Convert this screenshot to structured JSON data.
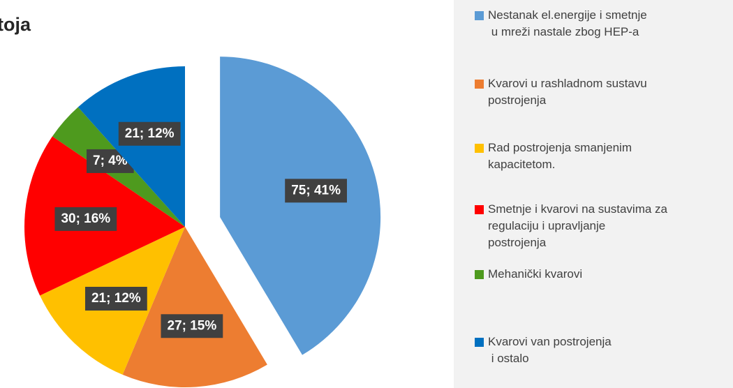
{
  "chart_data": {
    "type": "pie",
    "title": "toja",
    "categories": [
      "Nestanak el.energije i smetnje\n u mreži nastale zbog HEP-a",
      "Kvarovi u rashladnom sustavu\npostrojenja",
      "Rad postrojenja smanjenim\nkapacitetom.",
      "Smetnje i kvarovi na sustavima za\nregulaciju i upravljanje\npostrojenja",
      "Mehanički kvarovi",
      "Kvarovi van postrojenja\n i ostalo"
    ],
    "values": [
      75,
      27,
      21,
      30,
      7,
      21
    ],
    "value_labels": [
      "75; 41%",
      "27; 15%",
      "21; 12%",
      "30; 16%",
      "7; 4%",
      "21; 12%"
    ],
    "colors": [
      "#5b9bd5",
      "#ed7d31",
      "#ffc000",
      "#ff0000",
      "#4e9a1e",
      "#0070c0"
    ],
    "legend": "right"
  }
}
